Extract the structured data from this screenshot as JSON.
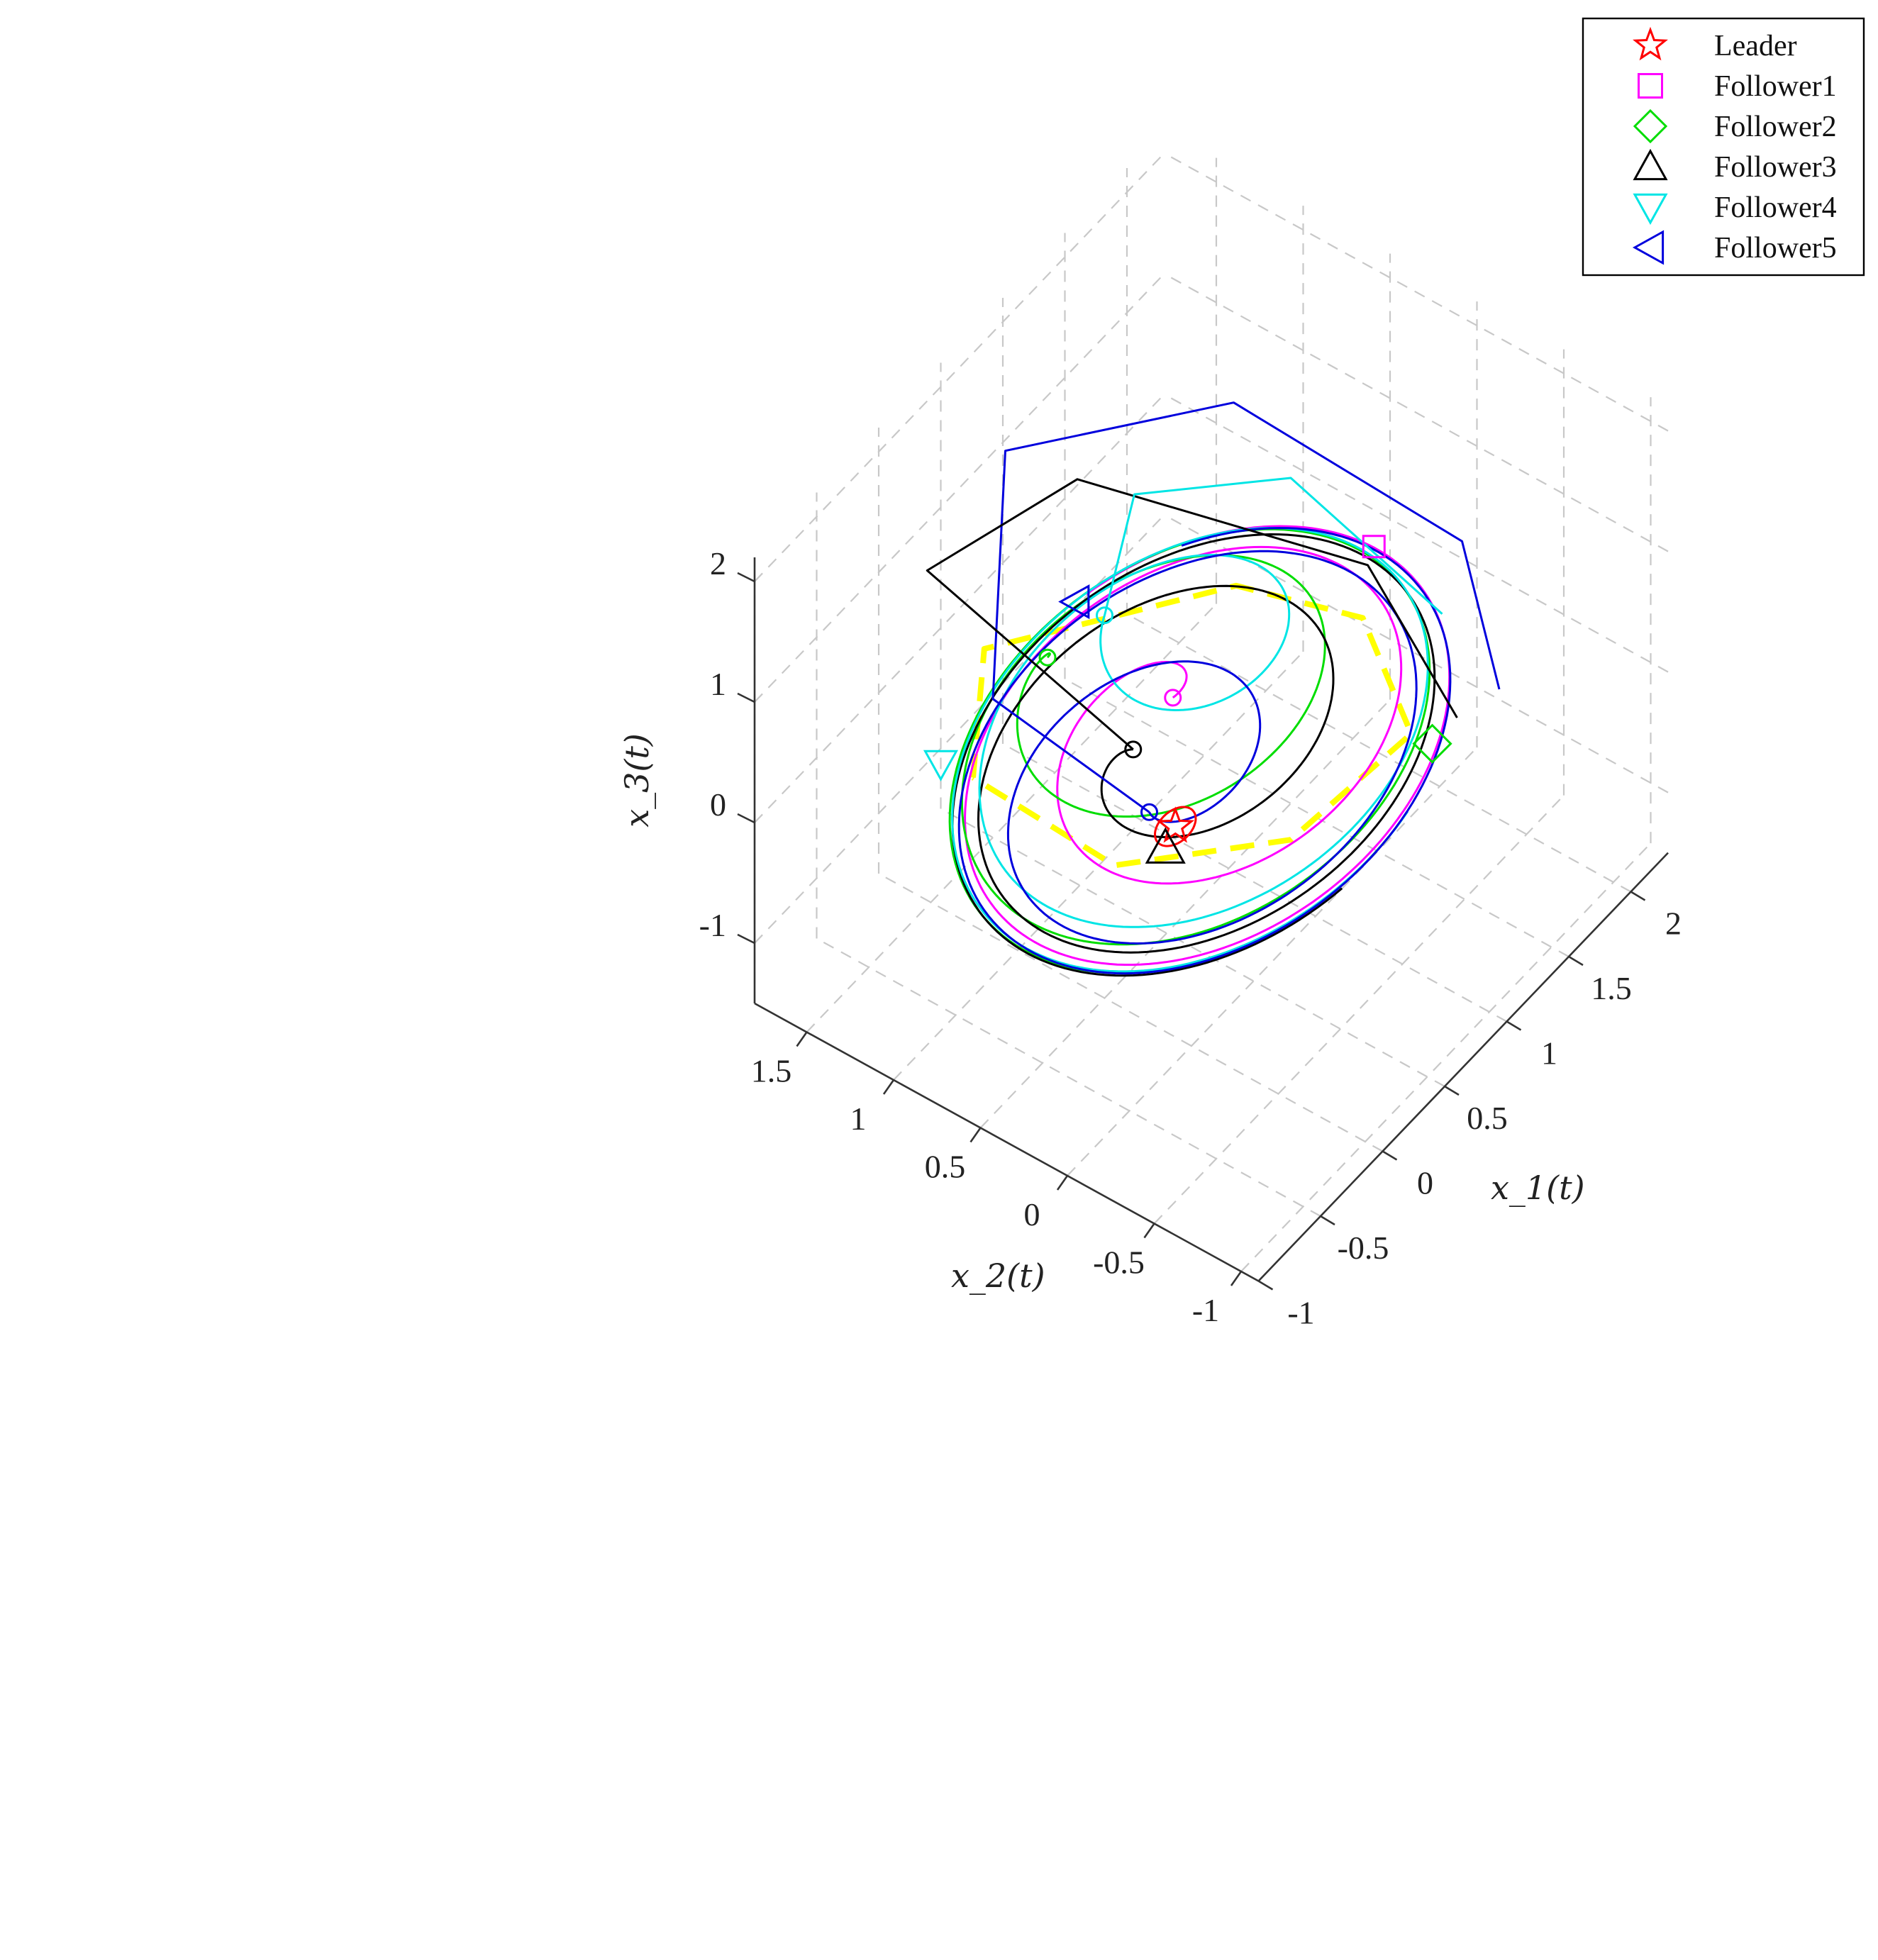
{
  "chart_data": {
    "type": "line",
    "view": "3d",
    "xlabel": "x_1(t)",
    "ylabel": "x_2(t)",
    "zlabel": "x_3(t)",
    "xlim": [
      -1,
      2.3
    ],
    "ylim": [
      -1.1,
      1.8
    ],
    "zlim": [
      -1.5,
      2.2
    ],
    "x_ticks": [
      "-1",
      "-0.5",
      "0",
      "0.5",
      "1",
      "1.5",
      "2"
    ],
    "y_ticks": [
      "1.5",
      "1",
      "0.5",
      "0",
      "-0.5",
      "-1"
    ],
    "z_ticks": [
      "2",
      "1",
      "0",
      "-1"
    ],
    "grid": true,
    "legend_position": "top-right",
    "series": [
      {
        "name": "Leader",
        "color": "#ff0000",
        "marker": "star"
      },
      {
        "name": "Follower1",
        "color": "#ff00ff",
        "marker": "square"
      },
      {
        "name": "Follower2",
        "color": "#00dd00",
        "marker": "diamond"
      },
      {
        "name": "Follower3",
        "color": "#000000",
        "marker": "triangle-up"
      },
      {
        "name": "Follower4",
        "color": "#00e5e5",
        "marker": "triangle-down"
      },
      {
        "name": "Follower5",
        "color": "#0000dd",
        "marker": "triangle-left"
      }
    ],
    "reference_path": {
      "color": "#ffff00",
      "style": "dashed"
    }
  }
}
